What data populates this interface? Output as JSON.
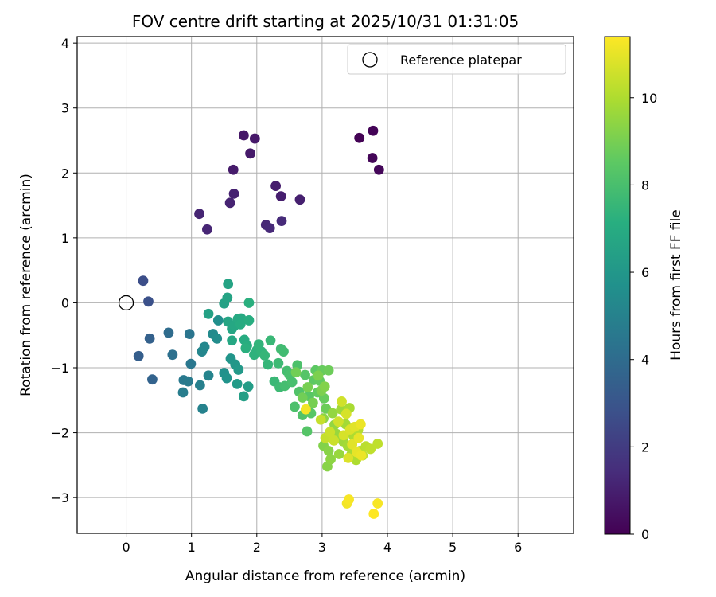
{
  "chart_data": {
    "type": "scatter",
    "title": "FOV centre drift starting at 2025/10/31 01:31:05",
    "xlabel": "Angular distance from reference (arcmin)",
    "ylabel": "Rotation from reference (arcmin)",
    "xlim": [
      -0.75,
      6.85
    ],
    "ylim": [
      -3.55,
      4.1
    ],
    "xticks": [
      "0",
      "1",
      "2",
      "3",
      "4",
      "5",
      "6"
    ],
    "yticks": [
      "−3",
      "−2",
      "−1",
      "0",
      "1",
      "2",
      "3",
      "4"
    ],
    "grid": true,
    "legend": {
      "position": "top-right",
      "entries": [
        "Reference platepar"
      ]
    },
    "colorbar": {
      "label": "Hours from first FF file",
      "range": [
        0,
        11.4
      ],
      "ticks": [
        "0",
        "2",
        "4",
        "6",
        "8",
        "10"
      ],
      "colormap": "viridis"
    },
    "reference_point": {
      "x": 0,
      "y": 0
    },
    "points": [
      [
        3.57,
        2.54,
        0.05
      ],
      [
        3.78,
        2.65,
        0.1
      ],
      [
        3.77,
        2.23,
        0.15
      ],
      [
        3.87,
        2.05,
        0.2
      ],
      [
        1.8,
        2.58,
        0.7
      ],
      [
        1.97,
        2.53,
        0.75
      ],
      [
        1.9,
        2.3,
        0.8
      ],
      [
        1.64,
        2.05,
        0.85
      ],
      [
        2.29,
        1.8,
        0.9
      ],
      [
        2.37,
        1.64,
        0.95
      ],
      [
        2.66,
        1.59,
        1.0
      ],
      [
        1.65,
        1.68,
        1.05
      ],
      [
        1.59,
        1.54,
        1.1
      ],
      [
        1.12,
        1.37,
        1.15
      ],
      [
        1.24,
        1.13,
        1.2
      ],
      [
        2.14,
        1.2,
        1.25
      ],
      [
        2.2,
        1.15,
        1.3
      ],
      [
        2.38,
        1.26,
        1.35
      ],
      [
        0.26,
        0.34,
        2.7
      ],
      [
        0.34,
        0.02,
        2.8
      ],
      [
        0.19,
        -0.82,
        3.4
      ],
      [
        0.36,
        -0.55,
        3.5
      ],
      [
        0.4,
        -1.18,
        3.6
      ],
      [
        0.65,
        -0.46,
        4.0
      ],
      [
        0.71,
        -0.8,
        4.2
      ],
      [
        0.97,
        -0.48,
        4.4
      ],
      [
        0.99,
        -0.94,
        4.5
      ],
      [
        0.88,
        -1.19,
        4.6
      ],
      [
        0.95,
        -1.21,
        4.7
      ],
      [
        0.87,
        -1.38,
        4.8
      ],
      [
        1.13,
        -1.27,
        4.9
      ],
      [
        1.17,
        -1.63,
        5.0
      ],
      [
        1.26,
        -1.12,
        5.1
      ],
      [
        1.16,
        -0.75,
        5.2
      ],
      [
        1.2,
        -0.68,
        5.3
      ],
      [
        1.33,
        -0.48,
        5.4
      ],
      [
        1.39,
        -0.55,
        5.5
      ],
      [
        1.41,
        -0.27,
        5.6
      ],
      [
        1.5,
        -1.08,
        5.7
      ],
      [
        1.54,
        -1.16,
        5.8
      ],
      [
        1.6,
        -0.86,
        5.9
      ],
      [
        1.67,
        -0.95,
        6.0
      ],
      [
        1.72,
        -1.03,
        6.1
      ],
      [
        1.7,
        -1.25,
        6.2
      ],
      [
        1.87,
        -1.29,
        6.3
      ],
      [
        1.8,
        -1.44,
        6.4
      ],
      [
        1.26,
        -0.17,
        6.5
      ],
      [
        1.5,
        -0.01,
        6.5
      ],
      [
        1.55,
        0.08,
        6.6
      ],
      [
        1.56,
        0.29,
        6.6
      ],
      [
        1.56,
        -0.29,
        6.7
      ],
      [
        1.62,
        -0.4,
        6.7
      ],
      [
        1.62,
        -0.58,
        6.8
      ],
      [
        1.66,
        -0.35,
        6.8
      ],
      [
        1.71,
        -0.25,
        6.9
      ],
      [
        1.76,
        -0.24,
        6.9
      ],
      [
        1.75,
        -0.33,
        7.0
      ],
      [
        1.81,
        -0.57,
        7.0
      ],
      [
        1.85,
        -0.66,
        7.1
      ],
      [
        1.88,
        -0.27,
        7.1
      ],
      [
        1.88,
        0.0,
        7.2
      ],
      [
        1.83,
        -0.7,
        7.2
      ],
      [
        1.96,
        -0.8,
        7.3
      ],
      [
        2.0,
        -0.73,
        7.3
      ],
      [
        2.03,
        -0.64,
        7.4
      ],
      [
        2.07,
        -0.75,
        7.4
      ],
      [
        2.12,
        -0.81,
        7.5
      ],
      [
        2.17,
        -0.95,
        7.5
      ],
      [
        2.21,
        -0.58,
        7.6
      ],
      [
        2.27,
        -1.21,
        7.6
      ],
      [
        2.33,
        -0.93,
        7.7
      ],
      [
        2.35,
        -1.3,
        7.7
      ],
      [
        2.37,
        -0.71,
        7.8
      ],
      [
        2.41,
        -0.75,
        7.8
      ],
      [
        2.43,
        -1.28,
        7.9
      ],
      [
        2.46,
        -1.05,
        7.9
      ],
      [
        2.5,
        -1.11,
        8.0
      ],
      [
        2.54,
        -1.22,
        8.0
      ],
      [
        2.58,
        -1.6,
        8.1
      ],
      [
        2.62,
        -0.96,
        8.1
      ],
      [
        2.65,
        -1.37,
        8.2
      ],
      [
        2.7,
        -1.73,
        8.2
      ],
      [
        2.74,
        -1.11,
        8.3
      ],
      [
        2.77,
        -1.98,
        8.3
      ],
      [
        2.8,
        -1.44,
        8.4
      ],
      [
        2.83,
        -1.7,
        8.4
      ],
      [
        2.87,
        -1.19,
        8.5
      ],
      [
        2.9,
        -1.04,
        8.5
      ],
      [
        2.93,
        -1.38,
        8.6
      ],
      [
        2.96,
        -1.2,
        8.6
      ],
      [
        3.0,
        -1.04,
        8.7
      ],
      [
        3.03,
        -1.47,
        8.7
      ],
      [
        3.06,
        -1.63,
        8.8
      ],
      [
        3.1,
        -1.04,
        8.8
      ],
      [
        2.6,
        -1.07,
        8.9
      ],
      [
        2.7,
        -1.46,
        8.9
      ],
      [
        2.78,
        -1.3,
        9.0
      ],
      [
        2.86,
        -1.54,
        9.0
      ],
      [
        2.94,
        -1.12,
        9.1
      ],
      [
        2.99,
        -1.35,
        9.1
      ],
      [
        3.04,
        -1.29,
        9.2
      ],
      [
        3.02,
        -2.2,
        9.2
      ],
      [
        3.08,
        -2.52,
        9.3
      ],
      [
        3.1,
        -2.28,
        9.3
      ],
      [
        3.13,
        -2.41,
        9.4
      ],
      [
        3.02,
        -1.78,
        9.4
      ],
      [
        3.16,
        -1.7,
        9.5
      ],
      [
        3.19,
        -1.88,
        9.5
      ],
      [
        3.22,
        -2.02,
        9.6
      ],
      [
        3.26,
        -2.33,
        9.6
      ],
      [
        3.29,
        -1.64,
        9.7
      ],
      [
        3.32,
        -2.13,
        9.7
      ],
      [
        3.36,
        -1.87,
        9.8
      ],
      [
        3.39,
        -2.2,
        9.8
      ],
      [
        3.42,
        -1.62,
        9.9
      ],
      [
        3.45,
        -2.33,
        9.9
      ],
      [
        3.48,
        -2.05,
        10.0
      ],
      [
        3.52,
        -2.42,
        10.0
      ],
      [
        3.55,
        -1.96,
        10.1
      ],
      [
        3.58,
        -2.28,
        10.1
      ],
      [
        3.62,
        -2.35,
        10.2
      ],
      [
        3.67,
        -2.21,
        10.2
      ],
      [
        3.74,
        -2.25,
        10.3
      ],
      [
        3.85,
        -2.17,
        10.3
      ],
      [
        2.98,
        -1.8,
        10.4
      ],
      [
        3.05,
        -2.08,
        10.4
      ],
      [
        3.12,
        -1.99,
        10.5
      ],
      [
        3.18,
        -2.12,
        10.5
      ],
      [
        3.25,
        -1.83,
        10.6
      ],
      [
        3.3,
        -1.52,
        10.6
      ],
      [
        3.33,
        -2.04,
        10.7
      ],
      [
        3.37,
        -1.71,
        10.7
      ],
      [
        3.4,
        -2.39,
        10.8
      ],
      [
        3.43,
        -1.95,
        10.8
      ],
      [
        3.46,
        -2.18,
        10.9
      ],
      [
        3.5,
        -1.91,
        10.9
      ],
      [
        3.53,
        -2.3,
        11.0
      ],
      [
        3.56,
        -2.08,
        11.0
      ],
      [
        3.59,
        -1.87,
        11.1
      ],
      [
        3.6,
        -2.35,
        11.1
      ],
      [
        2.75,
        -1.64,
        11.2
      ],
      [
        3.38,
        -3.09,
        11.2
      ],
      [
        3.41,
        -3.03,
        11.3
      ],
      [
        3.85,
        -3.09,
        11.3
      ],
      [
        3.79,
        -3.25,
        11.4
      ]
    ]
  }
}
